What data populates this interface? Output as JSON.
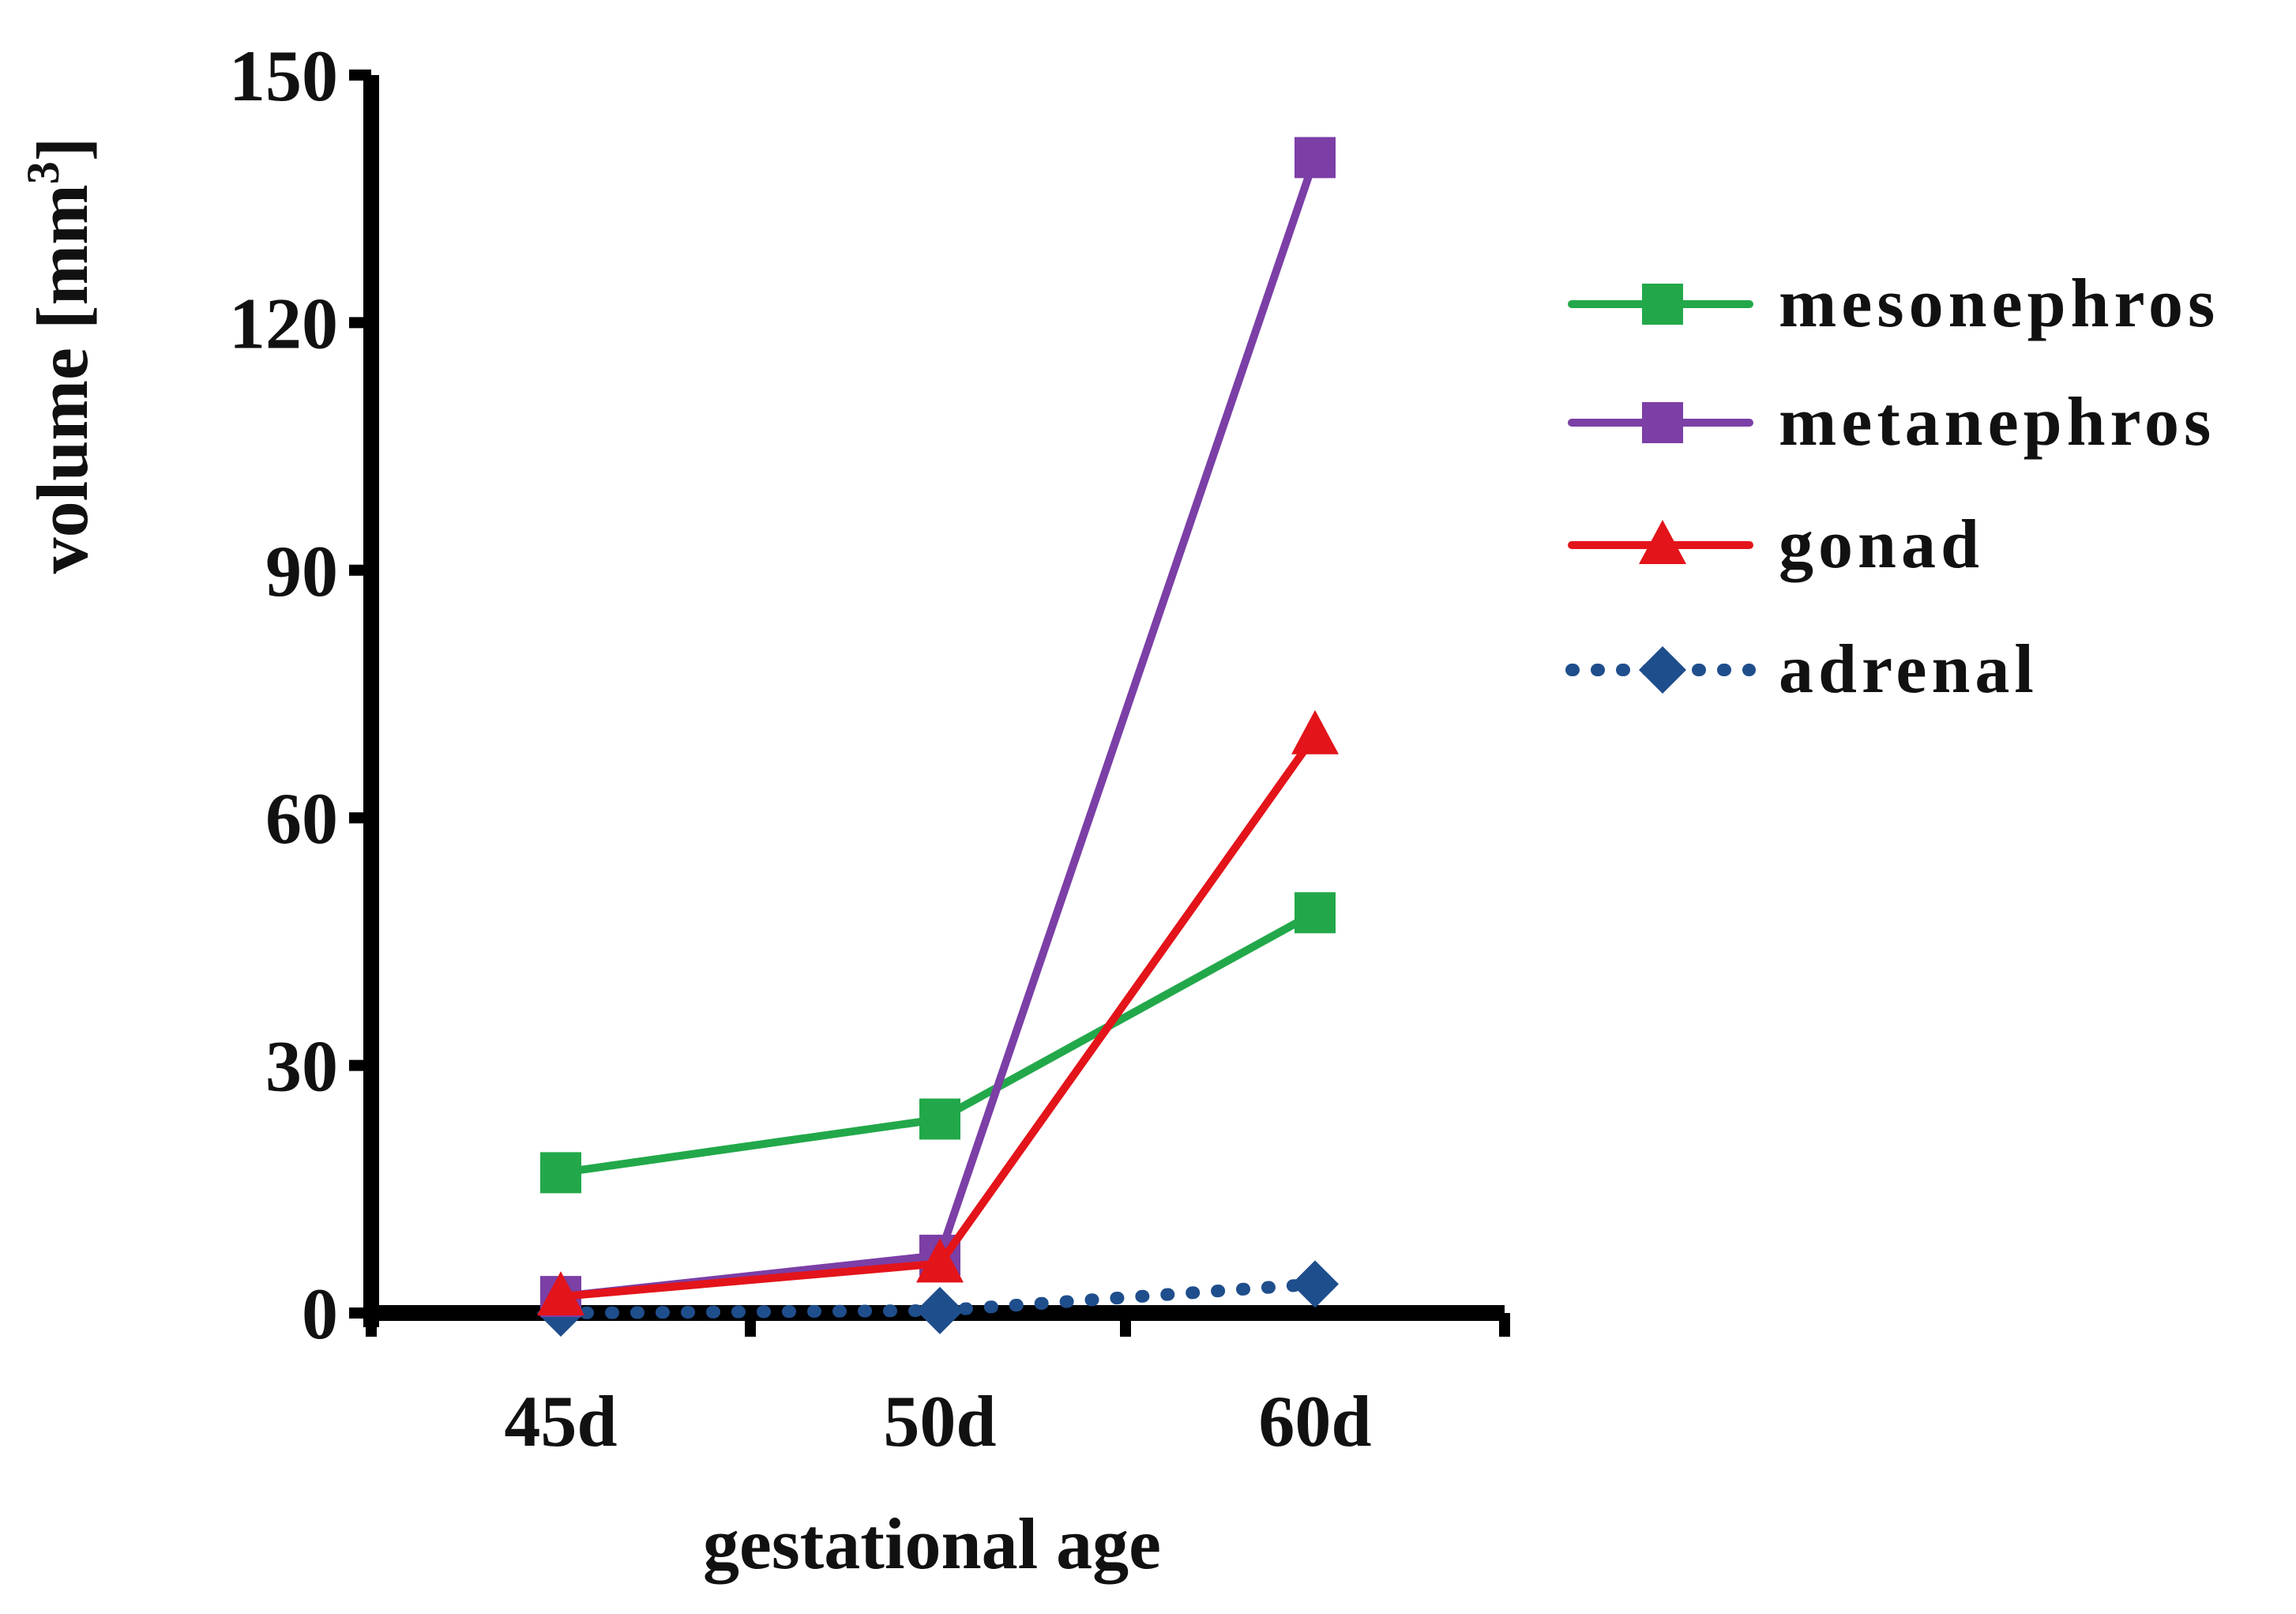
{
  "chart_data": {
    "type": "line",
    "title": "",
    "xlabel": "gestational age",
    "ylabel": "volume [mm",
    "ylabel_superscript": "3",
    "ylabel_close": "]",
    "categories": [
      "45d",
      "50d",
      "60d"
    ],
    "ylim": [
      0,
      150
    ],
    "yticks": [
      0,
      30,
      60,
      90,
      120,
      150
    ],
    "ytick_labels": [
      "0",
      "30",
      "60",
      "90",
      "120",
      "150"
    ],
    "grid": false,
    "legend_position": "right",
    "series": [
      {
        "name": "mesonephros",
        "values": [
          17,
          23.5,
          48.5
        ],
        "color": "#22a84a",
        "marker": "square",
        "line": "solid"
      },
      {
        "name": "metanephros",
        "values": [
          2,
          7,
          140
        ],
        "color": "#7b3fa6",
        "marker": "square",
        "line": "solid"
      },
      {
        "name": "gonad",
        "values": [
          2,
          6,
          70
        ],
        "color": "#e3141a",
        "marker": "triangle",
        "line": "solid"
      },
      {
        "name": "adrenal",
        "values": [
          0,
          0.3,
          3.5
        ],
        "color": "#1f4e8c",
        "marker": "diamond",
        "line": "dotted"
      }
    ]
  }
}
